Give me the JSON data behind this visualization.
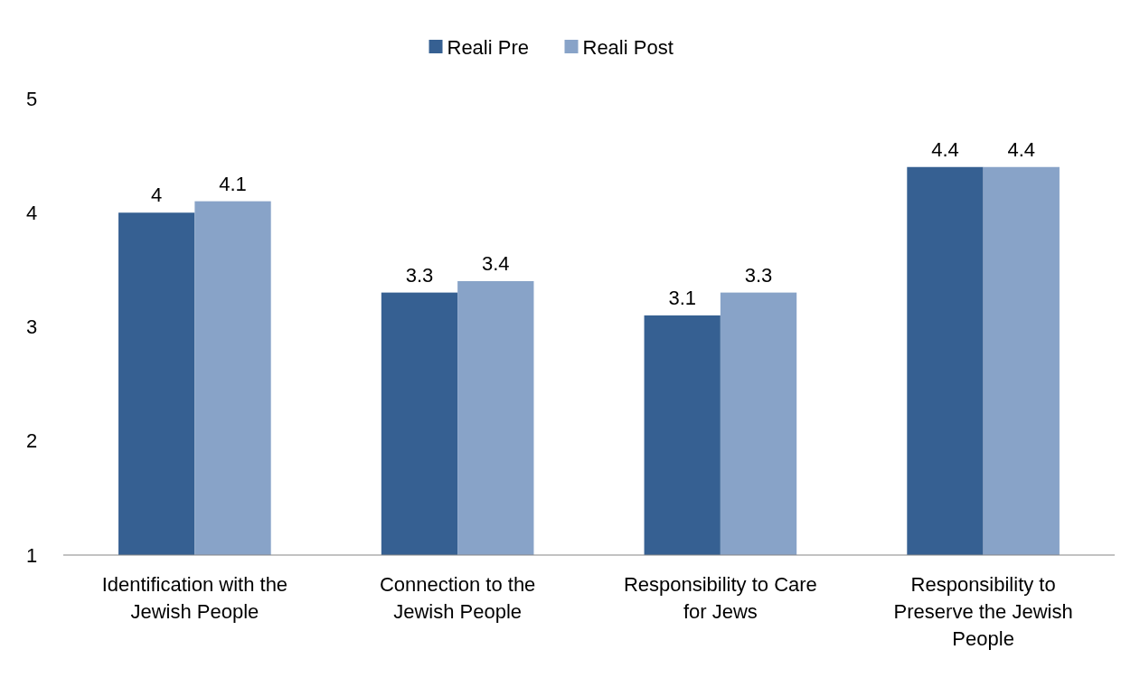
{
  "chart_data": {
    "type": "bar",
    "categories": [
      "Identification with the Jewish People",
      "Connection to the Jewish People",
      "Responsibility to Care for Jews",
      "Responsibility to Preserve the Jewish People"
    ],
    "series": [
      {
        "name": "Reali Pre",
        "color": "#366092",
        "values": [
          4,
          3.3,
          3.1,
          4.4
        ]
      },
      {
        "name": "Reali Post",
        "color": "#88a3c8",
        "values": [
          4.1,
          3.4,
          3.3,
          4.4
        ]
      }
    ],
    "ylim": [
      1,
      5
    ],
    "yticks": [
      1,
      2,
      3,
      4,
      5
    ],
    "data_labels": true,
    "legend": "top",
    "grid": false
  }
}
